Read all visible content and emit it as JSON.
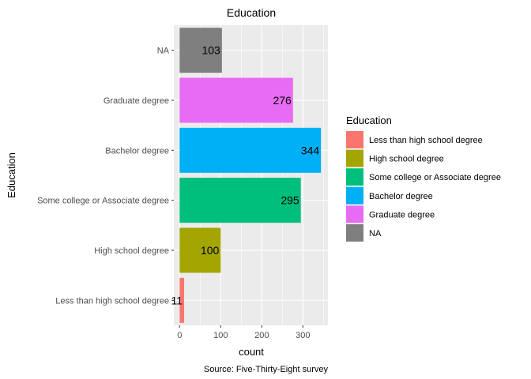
{
  "chart_data": {
    "type": "bar",
    "orientation": "horizontal",
    "title": "Education",
    "xlabel": "count",
    "ylabel": "Education",
    "caption": "Source: Five-Thirty-Eight survey",
    "categories": [
      "Less than high school degree",
      "High school degree",
      "Some college or Associate degree",
      "Bachelor degree",
      "Graduate degree",
      "NA"
    ],
    "values": [
      11,
      100,
      295,
      344,
      276,
      103
    ],
    "data_labels": [
      "11",
      "100",
      "295",
      "344",
      "276",
      "103"
    ],
    "colors": [
      "#F8766D",
      "#B79F00",
      "#00BA38",
      "#00BFC4",
      "#619CFF",
      "#F564E3"
    ],
    "bar_colors": [
      "#F8766D",
      "#A3A500",
      "#00BF7D",
      "#00B0F6",
      "#E76BF3",
      "#7F7F7F"
    ],
    "xlim": [
      -14,
      361
    ],
    "xticks": [
      0,
      100,
      200,
      300
    ],
    "xtick_labels": [
      "0",
      "100",
      "200",
      "300"
    ],
    "grid": true,
    "legend": {
      "title": "Education",
      "position": "right",
      "entries": [
        "Less than high school degree",
        "High school degree",
        "Some college or Associate degree",
        "Bachelor degree",
        "Graduate degree",
        "NA"
      ]
    }
  }
}
